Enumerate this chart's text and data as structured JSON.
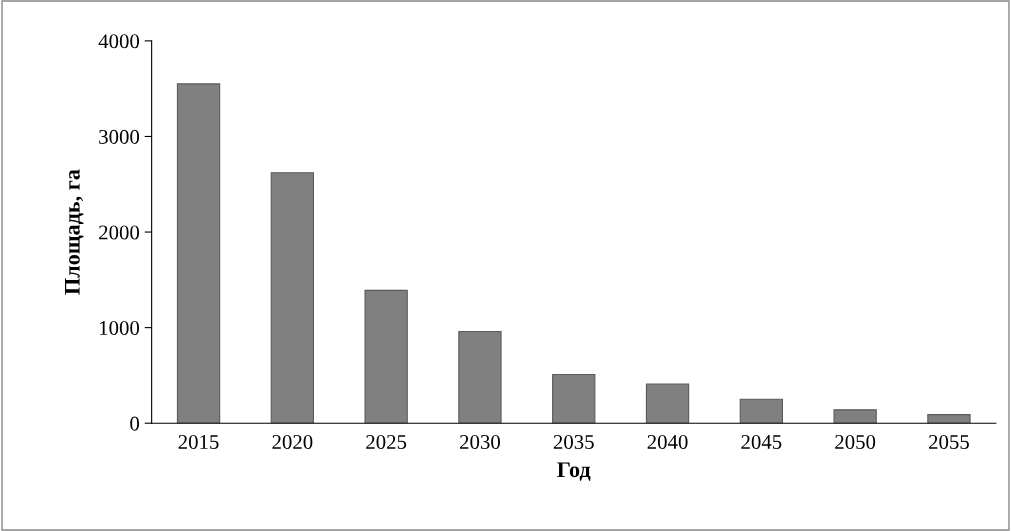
{
  "chart_data": {
    "type": "bar",
    "xlabel": "Год",
    "ylabel": "Площадь, га",
    "categories": [
      "2015",
      "2020",
      "2025",
      "2030",
      "2035",
      "2040",
      "2045",
      "2050",
      "2055"
    ],
    "values": [
      3550,
      2620,
      1390,
      960,
      510,
      410,
      250,
      140,
      90
    ],
    "color": "#808080",
    "ylim": [
      0,
      4000
    ],
    "yticks": [
      0,
      1000,
      2000,
      3000,
      4000
    ],
    "grid": false
  }
}
